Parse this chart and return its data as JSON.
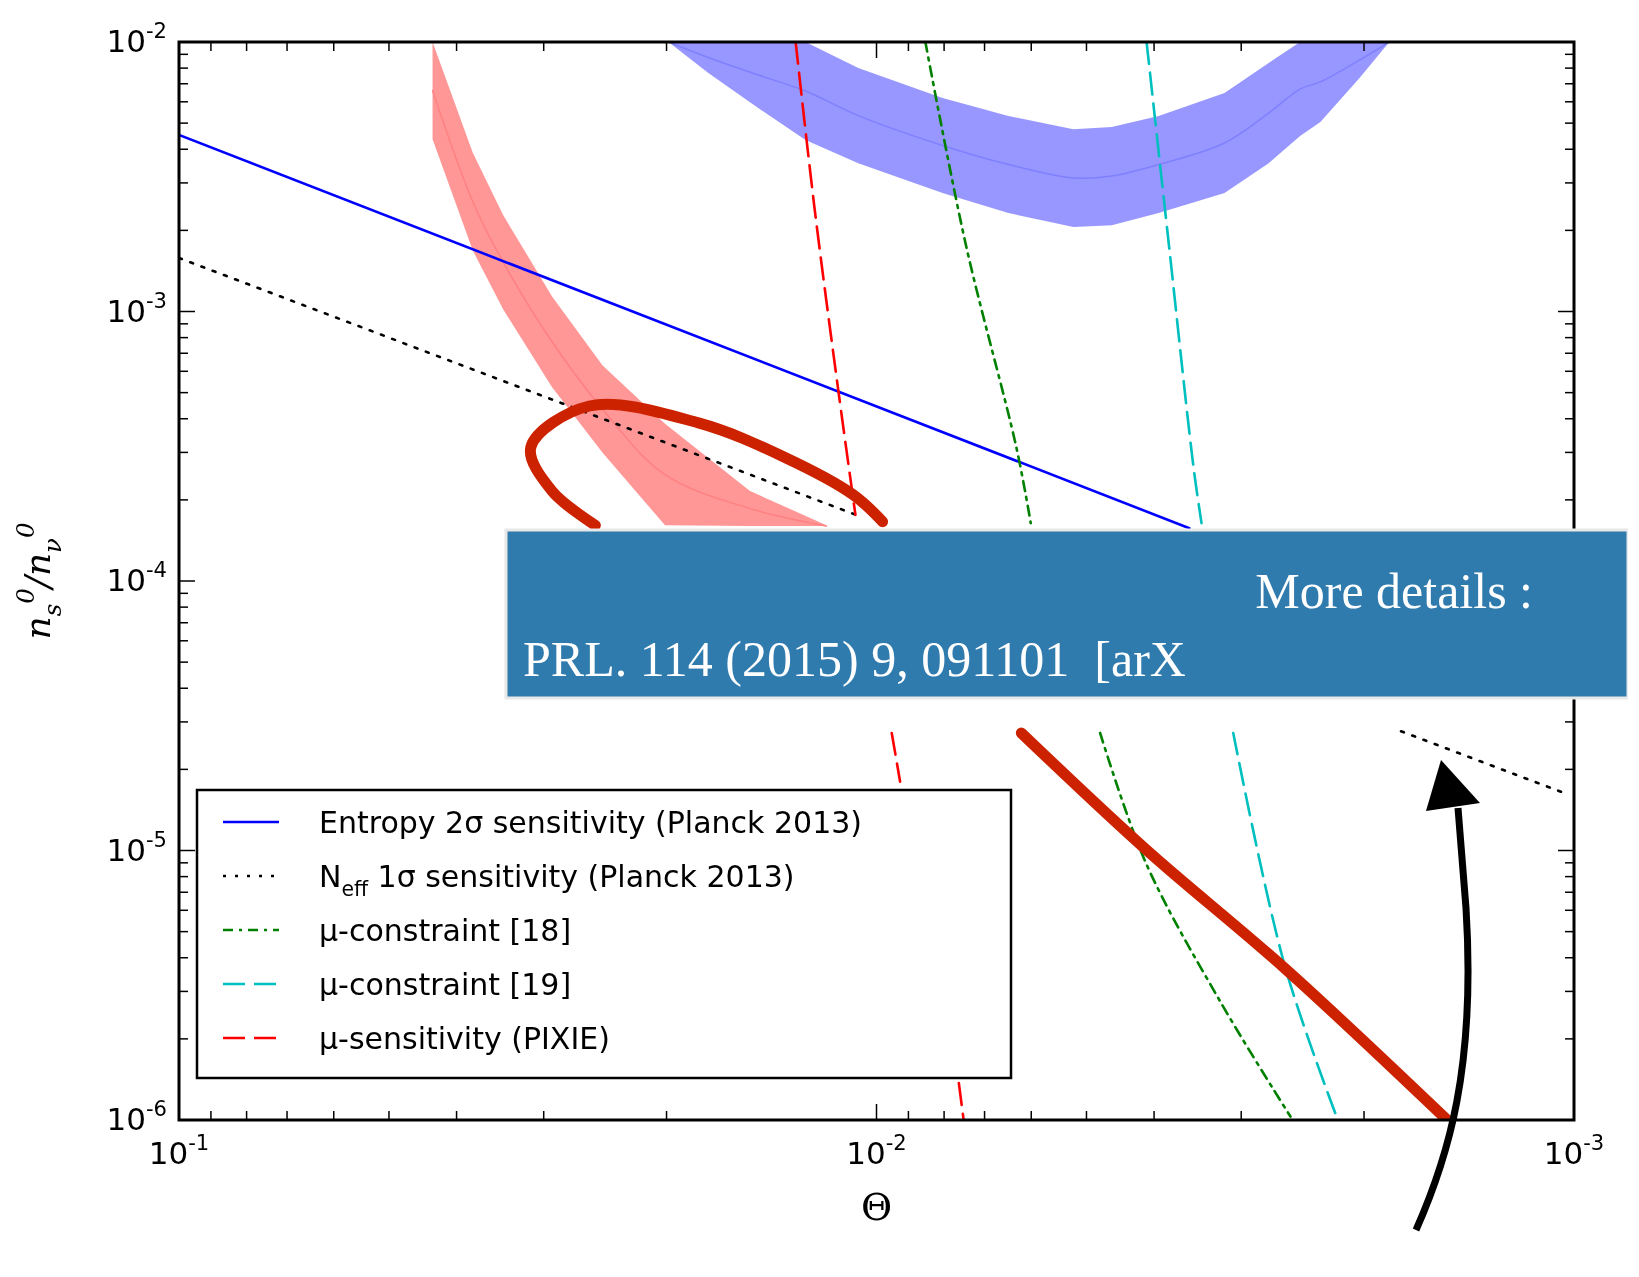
{
  "chart_data": {
    "type": "line",
    "xlabel": "Θ",
    "ylabel": "n$_{s}$$^{0}$/n$_{ν}$$^{0}$",
    "log": "xy",
    "legend": "bottom left",
    "xlim": [
      0.1,
      0.001
    ],
    "ylim": [
      1e-06,
      0.01
    ],
    "xticks": [
      {
        "value": 0.1,
        "label": "10$^{-1}$"
      },
      {
        "value": 0.09,
        "label": null
      },
      {
        "value": 0.08,
        "label": null
      },
      {
        "value": 0.07,
        "label": null
      },
      {
        "value": 0.06,
        "label": null
      },
      {
        "value": 0.05,
        "label": null
      },
      {
        "value": 0.04,
        "label": null
      },
      {
        "value": 0.03,
        "label": null
      },
      {
        "value": 0.02,
        "label": null
      },
      {
        "value": 0.01,
        "label": "10$^{-2}$"
      },
      {
        "value": 0.009,
        "label": null
      },
      {
        "value": 0.008,
        "label": null
      },
      {
        "value": 0.007,
        "label": null
      },
      {
        "value": 0.006,
        "label": null
      },
      {
        "value": 0.005,
        "label": null
      },
      {
        "value": 0.004,
        "label": null
      },
      {
        "value": 0.003,
        "label": null
      },
      {
        "value": 0.002,
        "label": null
      },
      {
        "value": 0.001,
        "label": "10$^{-3}$"
      }
    ],
    "yticks": [
      {
        "value": 1e-06,
        "label": "10$^{-6}$"
      },
      {
        "value": 2e-06,
        "label": null
      },
      {
        "value": 3e-06,
        "label": null
      },
      {
        "value": 4e-06,
        "label": null
      },
      {
        "value": 5e-06,
        "label": null
      },
      {
        "value": 6e-06,
        "label": null
      },
      {
        "value": 7e-06,
        "label": null
      },
      {
        "value": 8e-06,
        "label": null
      },
      {
        "value": 9e-06,
        "label": null
      },
      {
        "value": 1e-05,
        "label": "10$^{-5}$"
      },
      {
        "value": 2e-05,
        "label": null
      },
      {
        "value": 3e-05,
        "label": null
      },
      {
        "value": 4e-05,
        "label": null
      },
      {
        "value": 5e-05,
        "label": null
      },
      {
        "value": 6e-05,
        "label": null
      },
      {
        "value": 7e-05,
        "label": null
      },
      {
        "value": 8e-05,
        "label": null
      },
      {
        "value": 9e-05,
        "label": null
      },
      {
        "value": 0.0001,
        "label": "10$^{-4}$"
      },
      {
        "value": 0.0002,
        "label": null
      },
      {
        "value": 0.0003,
        "label": null
      },
      {
        "value": 0.0004,
        "label": null
      },
      {
        "value": 0.0005,
        "label": null
      },
      {
        "value": 0.0006,
        "label": null
      },
      {
        "value": 0.0007,
        "label": null
      },
      {
        "value": 0.0008,
        "label": null
      },
      {
        "value": 0.0009,
        "label": null
      },
      {
        "value": 0.001,
        "label": "10$^{-3}$"
      },
      {
        "value": 0.002,
        "label": null
      },
      {
        "value": 0.003,
        "label": null
      },
      {
        "value": 0.004,
        "label": null
      },
      {
        "value": 0.005,
        "label": null
      },
      {
        "value": 0.006,
        "label": null
      },
      {
        "value": 0.007,
        "label": null
      },
      {
        "value": 0.008,
        "label": null
      },
      {
        "value": 0.009,
        "label": null
      },
      {
        "value": 0.01,
        "label": "10$^{-2}$"
      }
    ],
    "annotations": [
      "More details :",
      "PRL. 114 (2015) 9, 091101  [arX"
    ],
    "series": [
      {
        "color": "#8080ff",
        "x": [
          0.01987,
          0.01742,
          0.01476,
          0.01264,
          0.01062,
          0.00804,
          0.00647,
          0.00522,
          0.0046,
          0.00394,
          0.00317,
          0.00274,
          0.00247,
          0.00231,
          0.00203,
          0.00184
        ],
        "values": [
          0.01,
          0.00876,
          0.00754,
          0.00658,
          0.00533,
          0.00413,
          0.00351,
          0.00313,
          0.00318,
          0.00351,
          0.00422,
          0.00545,
          0.00669,
          0.00711,
          0.00857,
          0.01
        ],
        "upper": [
          0.01,
          0.01,
          0.01,
          0.01,
          0.00801,
          0.0062,
          0.00531,
          0.00475,
          0.00484,
          0.00531,
          0.00647,
          0.00836,
          0.01,
          0.01,
          0.01,
          0.01
        ],
        "lower": [
          0.01,
          0.00767,
          0.00568,
          0.00433,
          0.00355,
          0.00275,
          0.00232,
          0.00206,
          0.00209,
          0.00232,
          0.00275,
          0.00355,
          0.00448,
          0.00505,
          0.00735,
          0.01
        ]
      },
      {
        "color": "#ff8080",
        "x": [
          0.0433,
          0.0379,
          0.0343,
          0.0292,
          0.0247,
          0.0201,
          0.0152,
          0.0118
        ],
        "values": [
          0.0066,
          0.00255,
          0.001525,
          0.000774,
          0.000434,
          0.000248,
          0.000186,
          0.00016
        ],
        "upper": [
          0.01,
          0.00387,
          0.00228,
          0.00114,
          0.00063,
          0.000383,
          0.000216,
          0.000161
        ],
        "lower": [
          0.00436,
          0.00168,
          0.00102,
          0.000525,
          0.000299,
          0.000161,
          0.00016,
          0.00016
        ]
      },
      {
        "name": "Entropy 2σ sensitivity (Planck 2013)",
        "color": "#0000ff",
        "line_style": "solid",
        "x": [
          0.1,
          0.00356
        ],
        "values": [
          0.00452,
          0.000157
        ]
      },
      {
        "name": "N$_{eff}$ 1σ sensitivity (Planck 2013)",
        "color": "#000000",
        "line_style": "dotted",
        "x": [
          0.1,
          0.0107
        ],
        "values": [
          0.00158,
          0.000176
        ]
      },
      {
        "color": "#000000",
        "line_style": "dotted",
        "x": [
          0.00177,
          0.00103
        ],
        "values": [
          2.77e-05,
          1.63e-05
        ]
      },
      {
        "name": "μ-constraint [18]",
        "color": "#008000",
        "line_style": "dashdot",
        "x": [
          0.00851,
          0.00745,
          0.0063,
          0.00601
        ],
        "values": [
          0.01,
          0.00178,
          0.000312,
          0.000164
        ]
      },
      {
        "color": "#008000",
        "line_style": "dashdot",
        "x": [
          0.00478,
          0.00411,
          0.00322,
          0.00255
        ],
        "values": [
          2.73e-05,
          9e-06,
          2.77e-06,
          1.03e-06
        ]
      },
      {
        "name": "μ-constraint [19]",
        "color": "#00bfbf",
        "line_style": "dashed",
        "x": [
          0.0041,
          0.00381,
          0.00351,
          0.00342
        ],
        "values": [
          0.01,
          0.00178,
          0.000262,
          0.000164
        ]
      },
      {
        "color": "#00bfbf",
        "line_style": "dashed",
        "x": [
          0.00308,
          0.0026,
          0.00219
        ],
        "values": [
          2.73e-05,
          3.76e-06,
          1.03e-06
        ]
      },
      {
        "name": "μ-sensitivity (PIXIE)",
        "color": "#ff0000",
        "line_style": "dashed",
        "x": [
          0.01306,
          0.01227,
          0.01135,
          0.01072
        ],
        "values": [
          0.01,
          0.00242,
          0.000515,
          0.000176
        ]
      },
      {
        "color": "#ff0000",
        "line_style": "dashed",
        "x": [
          0.00951,
          0.00925
        ],
        "values": [
          2.73e-05,
          1.8e-05
        ]
      },
      {
        "color": "#ff0000",
        "line_style": "dashed",
        "x": [
          0.00762,
          0.0075
        ],
        "values": [
          1.37e-06,
          1e-06
        ]
      },
      {
        "color": "#cc2200",
        "line_style": "solid",
        "x": [
          0.0098,
          0.0108,
          0.01355,
          0.018,
          0.0258,
          0.0313,
          0.0292,
          0.0253
        ],
        "values": [
          0.000166,
          0.000209,
          0.000288,
          0.000386,
          0.000446,
          0.000314,
          0.000216,
          0.000161
        ]
      },
      {
        "color": "#cc2200",
        "line_style": "solid",
        "x": [
          0.0062,
          0.00411,
          0.0026,
          0.00152
        ],
        "values": [
          2.73e-05,
          1.01e-05,
          3.66e-06,
          1e-06
        ]
      }
    ]
  }
}
